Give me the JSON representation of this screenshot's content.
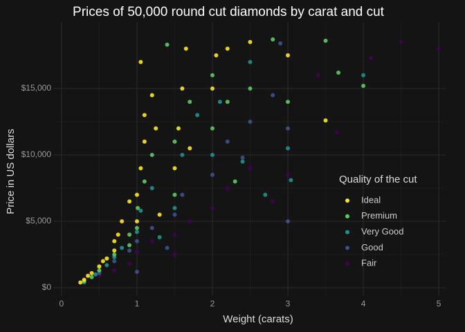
{
  "chart_data": {
    "type": "scatter",
    "title": "Prices of 50,000 round cut diamonds by carat and cut",
    "x_label": "Weight (carats)",
    "y_label": "Price in US dollars",
    "legend_title": "Quality of the cut",
    "legend": "right",
    "grid": true,
    "xlim": [
      -0.1,
      5.1
    ],
    "ylim": [
      -625,
      20000
    ],
    "xticks": [
      0,
      1,
      2,
      3,
      4,
      5
    ],
    "yticks": [
      {
        "value": 0,
        "label": "$0"
      },
      {
        "value": 5000,
        "label": "$5,000"
      },
      {
        "value": 10000,
        "label": "$10,000"
      },
      {
        "value": 15000,
        "label": "$15,000"
      }
    ],
    "series": [
      {
        "name": "Ideal",
        "color": "#fde725",
        "x": [
          0.25,
          0.3,
          0.35,
          0.4,
          0.5,
          0.55,
          0.6,
          0.7,
          0.7,
          0.75,
          0.8,
          0.9,
          1.0,
          1.0,
          1.05,
          1.1,
          1.1,
          1.2,
          1.05,
          1.25,
          1.3,
          1.5,
          1.55,
          1.6,
          1.65,
          1.7,
          2.0,
          2.05,
          2.2,
          2.5,
          3.0,
          3.5
        ],
        "values": [
          400,
          600,
          900,
          1100,
          1600,
          2000,
          2200,
          2800,
          3500,
          4000,
          5000,
          6500,
          5000,
          7000,
          9000,
          11000,
          13000,
          14500,
          17000,
          12000,
          5500,
          9000,
          12000,
          15000,
          18000,
          10500,
          15000,
          17500,
          18000,
          18500,
          17500,
          12600
        ]
      },
      {
        "name": "Premium",
        "color": "#5ec962",
        "x": [
          0.3,
          0.4,
          0.5,
          0.7,
          0.9,
          0.9,
          1.0,
          1.01,
          1.1,
          1.2,
          1.4,
          1.5,
          1.5,
          1.7,
          2.0,
          2.0,
          2.2,
          2.3,
          2.5,
          2.8,
          3.0,
          3.5,
          3.67,
          4.0
        ],
        "values": [
          500,
          800,
          1300,
          2500,
          4000,
          3200,
          4500,
          6000,
          8000,
          10000,
          18300,
          7000,
          11000,
          14000,
          12000,
          16000,
          14000,
          8000,
          15000,
          18700,
          14000,
          18600,
          16200,
          15200
        ]
      },
      {
        "name": "Very Good",
        "color": "#21918c",
        "x": [
          0.3,
          0.45,
          0.6,
          0.7,
          0.8,
          1.0,
          1.05,
          1.2,
          1.3,
          1.5,
          1.6,
          1.8,
          2.0,
          2.1,
          2.4,
          2.5,
          2.7,
          3.0,
          3.04,
          4.0
        ],
        "values": [
          450,
          1000,
          1700,
          2300,
          3000,
          4200,
          5800,
          7500,
          3800,
          6000,
          10000,
          13000,
          10000,
          14000,
          9500,
          17000,
          7000,
          10500,
          8100,
          16000
        ]
      },
      {
        "name": "Good",
        "color": "#3b528b",
        "x": [
          0.3,
          0.5,
          0.7,
          0.9,
          1.0,
          1.0,
          1.2,
          1.4,
          1.5,
          1.6,
          2.0,
          2.2,
          2.4,
          2.5,
          2.8,
          2.9,
          3.0,
          3.0
        ],
        "values": [
          400,
          1100,
          2000,
          2800,
          3500,
          1200,
          4500,
          3000,
          5500,
          7000,
          8500,
          11000,
          9800,
          12500,
          14500,
          18400,
          12000,
          5000
        ]
      },
      {
        "name": "Fair",
        "color": "#440154",
        "x": [
          0.5,
          0.7,
          0.9,
          1.0,
          1.2,
          1.5,
          1.5,
          1.7,
          2.0,
          2.0,
          2.2,
          2.5,
          2.8,
          3.0,
          3.4,
          3.65,
          4.1,
          4.5,
          5.0
        ],
        "values": [
          900,
          1300,
          1800,
          2700,
          3500,
          4000,
          2500,
          5000,
          6000,
          12000,
          7500,
          9000,
          6500,
          8500,
          16000,
          11700,
          17300,
          18500,
          18000
        ]
      }
    ]
  }
}
